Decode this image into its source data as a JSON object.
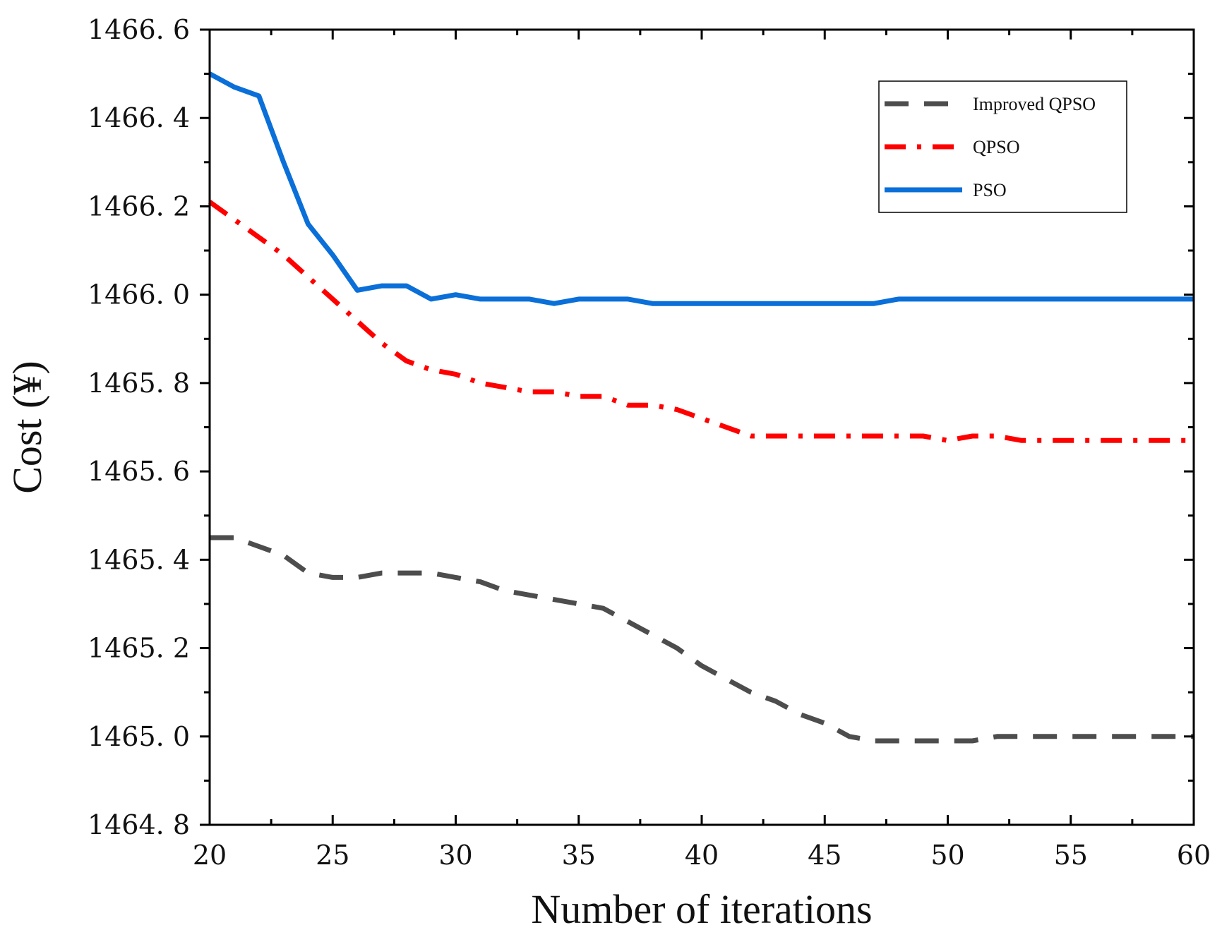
{
  "chart_data": {
    "type": "line",
    "title": "",
    "xlabel": "Number of iterations",
    "ylabel": "Cost (¥)",
    "xlim": [
      20,
      60
    ],
    "ylim": [
      1464.8,
      1466.6
    ],
    "x_ticks": [
      20,
      25,
      30,
      35,
      40,
      45,
      50,
      55,
      60
    ],
    "x_tick_labels": [
      "20",
      "25",
      "30",
      "35",
      "40",
      "45",
      "50",
      "55",
      "60"
    ],
    "y_ticks": [
      1464.8,
      1465.0,
      1465.2,
      1465.4,
      1465.6,
      1465.8,
      1466.0,
      1466.2,
      1466.4,
      1466.6
    ],
    "y_tick_labels": [
      "1464. 8",
      "1465. 0",
      "1465. 2",
      "1465. 4",
      "1465. 6",
      "1465. 8",
      "1466. 0",
      "1466. 2",
      "1466. 4",
      "1466. 6"
    ],
    "legend_position": "top-right",
    "grid": false,
    "x": [
      20,
      21,
      22,
      23,
      24,
      25,
      26,
      27,
      28,
      29,
      30,
      31,
      32,
      33,
      34,
      35,
      36,
      37,
      38,
      39,
      40,
      41,
      42,
      43,
      44,
      45,
      46,
      47,
      48,
      49,
      50,
      51,
      52,
      53,
      54,
      55,
      56,
      57,
      58,
      59,
      60
    ],
    "series": [
      {
        "name": "Improved QPSO",
        "color": "#4d4d4d",
        "style": "dash",
        "values": [
          1465.45,
          1465.45,
          1465.43,
          1465.41,
          1465.37,
          1465.36,
          1465.36,
          1465.37,
          1465.37,
          1465.37,
          1465.36,
          1465.35,
          1465.33,
          1465.32,
          1465.31,
          1465.3,
          1465.29,
          1465.26,
          1465.23,
          1465.2,
          1465.16,
          1465.13,
          1465.1,
          1465.08,
          1465.05,
          1465.03,
          1465.0,
          1464.99,
          1464.99,
          1464.99,
          1464.99,
          1464.99,
          1465.0,
          1465.0,
          1465.0,
          1465.0,
          1465.0,
          1465.0,
          1465.0,
          1465.0,
          1465.0
        ]
      },
      {
        "name": "QPSO",
        "color": "#ff0000",
        "style": "dashdot",
        "values": [
          1466.21,
          1466.17,
          1466.13,
          1466.09,
          1466.04,
          1465.99,
          1465.94,
          1465.89,
          1465.85,
          1465.83,
          1465.82,
          1465.8,
          1465.79,
          1465.78,
          1465.78,
          1465.77,
          1465.77,
          1465.75,
          1465.75,
          1465.74,
          1465.72,
          1465.7,
          1465.68,
          1465.68,
          1465.68,
          1465.68,
          1465.68,
          1465.68,
          1465.68,
          1465.68,
          1465.67,
          1465.68,
          1465.68,
          1465.67,
          1465.67,
          1465.67,
          1465.67,
          1465.67,
          1465.67,
          1465.67,
          1465.67
        ]
      },
      {
        "name": "PSO",
        "color": "#0a6fd8",
        "style": "solid",
        "values": [
          1466.5,
          1466.47,
          1466.45,
          1466.3,
          1466.16,
          1466.09,
          1466.01,
          1466.02,
          1466.02,
          1465.99,
          1466.0,
          1465.99,
          1465.99,
          1465.99,
          1465.98,
          1465.99,
          1465.99,
          1465.99,
          1465.98,
          1465.98,
          1465.98,
          1465.98,
          1465.98,
          1465.98,
          1465.98,
          1465.98,
          1465.98,
          1465.98,
          1465.99,
          1465.99,
          1465.99,
          1465.99,
          1465.99,
          1465.99,
          1465.99,
          1465.99,
          1465.99,
          1465.99,
          1465.99,
          1465.99,
          1465.99
        ]
      }
    ]
  }
}
